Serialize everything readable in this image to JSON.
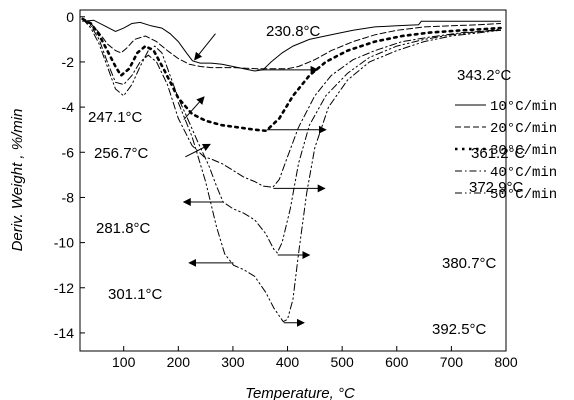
{
  "chart_data": {
    "type": "line",
    "title": "",
    "xlabel": "Temperature, °C",
    "ylabel": "Deriv. Weight , %/min",
    "xlim": [
      20,
      800
    ],
    "ylim": [
      -14.8,
      0.3
    ],
    "xticks": [
      100,
      200,
      300,
      400,
      500,
      600,
      700,
      800
    ],
    "yticks": [
      0,
      -2,
      -4,
      -6,
      -8,
      -10,
      -12,
      -14
    ],
    "grid": false,
    "legend_position": "right",
    "series": [
      {
        "name": "10°C/min",
        "dash": "solid",
        "points": [
          [
            25,
            -0.2
          ],
          [
            45,
            -0.15
          ],
          [
            65,
            -0.4
          ],
          [
            85,
            -0.65
          ],
          [
            100,
            -0.5
          ],
          [
            115,
            -0.3
          ],
          [
            130,
            -0.25
          ],
          [
            150,
            -0.4
          ],
          [
            170,
            -0.5
          ],
          [
            185,
            -0.75
          ],
          [
            200,
            -1.1
          ],
          [
            215,
            -1.6
          ],
          [
            226,
            -1.95
          ],
          [
            240,
            -2.05
          ],
          [
            260,
            -2.05
          ],
          [
            280,
            -2.1
          ],
          [
            300,
            -2.2
          ],
          [
            320,
            -2.3
          ],
          [
            340,
            -2.4
          ],
          [
            355,
            -2.35
          ],
          [
            370,
            -2.0
          ],
          [
            390,
            -1.6
          ],
          [
            410,
            -1.3
          ],
          [
            440,
            -1.0
          ],
          [
            480,
            -0.8
          ],
          [
            520,
            -0.6
          ],
          [
            560,
            -0.45
          ],
          [
            600,
            -0.4
          ],
          [
            640,
            -0.35
          ],
          [
            645,
            -0.2
          ],
          [
            690,
            -0.2
          ],
          [
            740,
            -0.2
          ],
          [
            790,
            -0.2
          ]
        ]
      },
      {
        "name": "20°C/min",
        "dash": "dashed",
        "points": [
          [
            25,
            -0.1
          ],
          [
            40,
            -0.3
          ],
          [
            55,
            -0.7
          ],
          [
            70,
            -1.2
          ],
          [
            85,
            -1.5
          ],
          [
            95,
            -1.6
          ],
          [
            105,
            -1.4
          ],
          [
            120,
            -1.0
          ],
          [
            140,
            -0.85
          ],
          [
            160,
            -1.1
          ],
          [
            180,
            -1.5
          ],
          [
            200,
            -1.85
          ],
          [
            220,
            -2.1
          ],
          [
            240,
            -2.2
          ],
          [
            260,
            -2.25
          ],
          [
            300,
            -2.25
          ],
          [
            343,
            -2.3
          ],
          [
            370,
            -2.3
          ],
          [
            400,
            -2.3
          ],
          [
            420,
            -2.2
          ],
          [
            450,
            -1.9
          ],
          [
            480,
            -1.5
          ],
          [
            520,
            -1.1
          ],
          [
            560,
            -0.8
          ],
          [
            600,
            -0.6
          ],
          [
            650,
            -0.45
          ],
          [
            700,
            -0.4
          ],
          [
            750,
            -0.35
          ],
          [
            790,
            -0.3
          ]
        ]
      },
      {
        "name": "30°C/min",
        "dash": "dotted",
        "points": [
          [
            25,
            -0.1
          ],
          [
            40,
            -0.3
          ],
          [
            55,
            -0.8
          ],
          [
            70,
            -1.5
          ],
          [
            85,
            -2.2
          ],
          [
            95,
            -2.6
          ],
          [
            110,
            -2.3
          ],
          [
            125,
            -1.6
          ],
          [
            140,
            -1.3
          ],
          [
            155,
            -1.5
          ],
          [
            175,
            -2.4
          ],
          [
            200,
            -3.6
          ],
          [
            225,
            -4.3
          ],
          [
            250,
            -4.6
          ],
          [
            280,
            -4.8
          ],
          [
            310,
            -4.9
          ],
          [
            340,
            -5.0
          ],
          [
            361,
            -5.05
          ],
          [
            385,
            -4.5
          ],
          [
            410,
            -3.5
          ],
          [
            440,
            -2.6
          ],
          [
            470,
            -2.0
          ],
          [
            510,
            -1.5
          ],
          [
            560,
            -1.1
          ],
          [
            610,
            -0.85
          ],
          [
            660,
            -0.7
          ],
          [
            720,
            -0.6
          ],
          [
            790,
            -0.5
          ]
        ]
      },
      {
        "name": "40°C/min",
        "dash": "dashdot",
        "points": [
          [
            25,
            -0.1
          ],
          [
            40,
            -0.4
          ],
          [
            55,
            -1.0
          ],
          [
            70,
            -2.0
          ],
          [
            85,
            -2.9
          ],
          [
            100,
            -3.0
          ],
          [
            115,
            -2.6
          ],
          [
            130,
            -2.0
          ],
          [
            145,
            -1.7
          ],
          [
            160,
            -2.0
          ],
          [
            180,
            -3.0
          ],
          [
            200,
            -4.5
          ],
          [
            225,
            -5.7
          ],
          [
            247,
            -6.2
          ],
          [
            260,
            -6.3
          ],
          [
            280,
            -6.5
          ],
          [
            300,
            -6.8
          ],
          [
            320,
            -7.1
          ],
          [
            340,
            -7.3
          ],
          [
            355,
            -7.5
          ],
          [
            373,
            -7.55
          ],
          [
            385,
            -7.2
          ],
          [
            400,
            -6.2
          ],
          [
            420,
            -4.9
          ],
          [
            450,
            -3.5
          ],
          [
            480,
            -2.6
          ],
          [
            520,
            -1.9
          ],
          [
            560,
            -1.5
          ],
          [
            610,
            -1.1
          ],
          [
            660,
            -0.9
          ],
          [
            720,
            -0.7
          ],
          [
            790,
            -0.6
          ]
        ]
      },
      {
        "name": "50°C/min",
        "dash": "dashdotdot",
        "points": [
          [
            25,
            -0.1
          ],
          [
            40,
            -0.5
          ],
          [
            55,
            -1.2
          ],
          [
            70,
            -2.2
          ],
          [
            85,
            -3.2
          ],
          [
            100,
            -3.5
          ],
          [
            115,
            -3.0
          ],
          [
            130,
            -2.2
          ],
          [
            145,
            -1.5
          ],
          [
            157,
            -1.3
          ],
          [
            170,
            -1.6
          ],
          [
            185,
            -2.6
          ],
          [
            200,
            -3.6
          ],
          [
            215,
            -4.4
          ],
          [
            235,
            -5.5
          ],
          [
            256,
            -6.6
          ],
          [
            270,
            -7.5
          ],
          [
            282,
            -8.2
          ],
          [
            300,
            -8.5
          ],
          [
            320,
            -8.7
          ],
          [
            340,
            -9.0
          ],
          [
            360,
            -9.6
          ],
          [
            375,
            -10.3
          ],
          [
            381,
            -10.45
          ],
          [
            390,
            -10.0
          ],
          [
            405,
            -8.5
          ],
          [
            420,
            -6.5
          ],
          [
            440,
            -4.8
          ],
          [
            470,
            -3.5
          ],
          [
            510,
            -2.5
          ],
          [
            550,
            -1.8
          ],
          [
            600,
            -1.3
          ],
          [
            650,
            -1.0
          ],
          [
            700,
            -0.8
          ],
          [
            790,
            -0.55
          ]
        ]
      },
      {
        "name": "",
        "dash": "dashdotdot",
        "points": [
          [
            200,
            -3.8
          ],
          [
            225,
            -5.3
          ],
          [
            250,
            -7.3
          ],
          [
            270,
            -9.3
          ],
          [
            285,
            -10.5
          ],
          [
            301,
            -11.0
          ],
          [
            320,
            -11.2
          ],
          [
            340,
            -11.5
          ],
          [
            360,
            -12.2
          ],
          [
            375,
            -12.9
          ],
          [
            392,
            -13.5
          ],
          [
            400,
            -13.4
          ],
          [
            410,
            -12.5
          ],
          [
            420,
            -10.5
          ],
          [
            435,
            -7.8
          ],
          [
            450,
            -5.8
          ],
          [
            475,
            -4.0
          ],
          [
            510,
            -2.8
          ],
          [
            550,
            -2.0
          ],
          [
            600,
            -1.5
          ],
          [
            650,
            -1.1
          ],
          [
            700,
            -0.85
          ],
          [
            790,
            -0.6
          ]
        ]
      }
    ],
    "annotations": [
      {
        "text": "230.8°C",
        "arrow_from": [
          268,
          -0.75
        ],
        "arrow_to": [
          230,
          -1.9
        ]
      },
      {
        "text": "343.2°C",
        "arrow_from": [
          345,
          -2.35
        ],
        "arrow_to": [
          455,
          -2.35
        ]
      },
      {
        "text": "247.1°C",
        "arrow_from": [
          210,
          -4.55
        ],
        "arrow_to": [
          247,
          -3.55
        ]
      },
      {
        "text": "361.2°C",
        "arrow_from": [
          362,
          -5.0
        ],
        "arrow_to": [
          470,
          -5.0
        ]
      },
      {
        "text": "256.7°C",
        "arrow_from": [
          213,
          -6.2
        ],
        "arrow_to": [
          258,
          -5.65
        ]
      },
      {
        "text": "372.9°C",
        "arrow_from": [
          374,
          -7.6
        ],
        "arrow_to": [
          468,
          -7.6
        ]
      },
      {
        "text": "281.8°C",
        "arrow_from": [
          283,
          -8.2
        ],
        "arrow_to": [
          210,
          -8.2
        ]
      },
      {
        "text": "380.7°C",
        "arrow_from": [
          382,
          -10.55
        ],
        "arrow_to": [
          440,
          -10.55
        ]
      },
      {
        "text": "301.1°C",
        "arrow_from": [
          301,
          -10.9
        ],
        "arrow_to": [
          220,
          -10.9
        ]
      },
      {
        "text": "392.5°C",
        "arrow_from": [
          393,
          -13.55
        ],
        "arrow_to": [
          430,
          -13.55
        ]
      }
    ]
  }
}
